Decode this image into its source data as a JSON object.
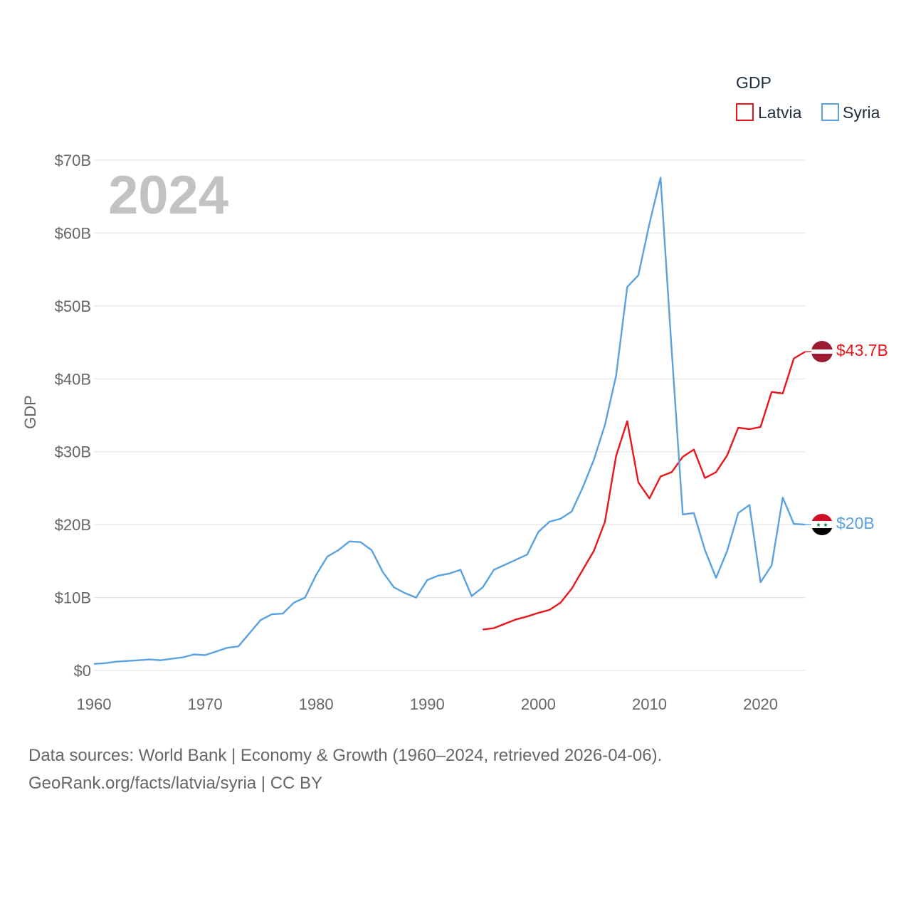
{
  "chart_data": {
    "type": "line",
    "legend_title": "GDP",
    "ylabel": "GDP",
    "year_label": "2024",
    "xlim": [
      1960,
      2024
    ],
    "ylim": [
      0,
      70
    ],
    "x_ticks": [
      1960,
      1970,
      1980,
      1990,
      2000,
      2010,
      2020
    ],
    "y_ticks": [
      {
        "value": 0,
        "label": "$0"
      },
      {
        "value": 10,
        "label": "$10B"
      },
      {
        "value": 20,
        "label": "$20B"
      },
      {
        "value": 30,
        "label": "$30B"
      },
      {
        "value": 40,
        "label": "$40B"
      },
      {
        "value": 50,
        "label": "$50B"
      },
      {
        "value": 60,
        "label": "$60B"
      },
      {
        "value": 70,
        "label": "$70B"
      }
    ],
    "series": [
      {
        "name": "Latvia",
        "color": "#e8161b",
        "end_label": "$43.7B",
        "flag": "latvia-flag",
        "x": [
          1995,
          1996,
          1997,
          1998,
          1999,
          2000,
          2001,
          2002,
          2003,
          2004,
          2005,
          2006,
          2007,
          2008,
          2009,
          2010,
          2011,
          2012,
          2013,
          2014,
          2015,
          2016,
          2017,
          2018,
          2019,
          2020,
          2021,
          2022,
          2023,
          2024
        ],
        "values": [
          5.6,
          5.8,
          6.4,
          7.0,
          7.4,
          7.9,
          8.3,
          9.3,
          11.2,
          13.8,
          16.4,
          20.4,
          29.4,
          34.2,
          25.8,
          23.6,
          26.6,
          27.2,
          29.3,
          30.3,
          26.4,
          27.2,
          29.5,
          33.3,
          33.1,
          33.4,
          38.2,
          38.0,
          42.8,
          43.7
        ]
      },
      {
        "name": "Syria",
        "color": "#5aa1e0",
        "end_label": "$20B",
        "flag": "syria-flag",
        "x": [
          1960,
          1961,
          1962,
          1963,
          1964,
          1965,
          1966,
          1967,
          1968,
          1969,
          1970,
          1971,
          1972,
          1973,
          1974,
          1975,
          1976,
          1977,
          1978,
          1979,
          1980,
          1981,
          1982,
          1983,
          1984,
          1985,
          1986,
          1987,
          1988,
          1989,
          1990,
          1991,
          1992,
          1993,
          1994,
          1995,
          1996,
          1997,
          1998,
          1999,
          2000,
          2001,
          2002,
          2003,
          2004,
          2005,
          2006,
          2007,
          2008,
          2009,
          2010,
          2011,
          2012,
          2013,
          2014,
          2015,
          2016,
          2017,
          2018,
          2019,
          2020,
          2021,
          2022,
          2023,
          2024
        ],
        "values": [
          0.9,
          1.0,
          1.2,
          1.3,
          1.4,
          1.5,
          1.4,
          1.6,
          1.8,
          2.2,
          2.1,
          2.6,
          3.1,
          3.3,
          5.1,
          6.9,
          7.7,
          7.8,
          9.3,
          10.0,
          13.1,
          15.6,
          16.5,
          17.7,
          17.6,
          16.5,
          13.5,
          11.4,
          10.6,
          10.0,
          12.4,
          13.0,
          13.3,
          13.8,
          10.2,
          11.4,
          13.8,
          14.5,
          15.2,
          15.9,
          19.0,
          20.4,
          20.8,
          21.8,
          25.1,
          28.9,
          33.7,
          40.4,
          52.6,
          54.2,
          61.3,
          67.6,
          44.0,
          21.4,
          21.6,
          16.5,
          12.7,
          16.4,
          21.6,
          22.7,
          12.1,
          14.4,
          23.7,
          20.1,
          20.0
        ]
      }
    ]
  },
  "source": {
    "line1": "Data sources: World Bank | Economy & Growth (1960–2024, retrieved 2026-04-06).",
    "line2": "GeoRank.org/facts/latvia/syria | CC BY"
  }
}
